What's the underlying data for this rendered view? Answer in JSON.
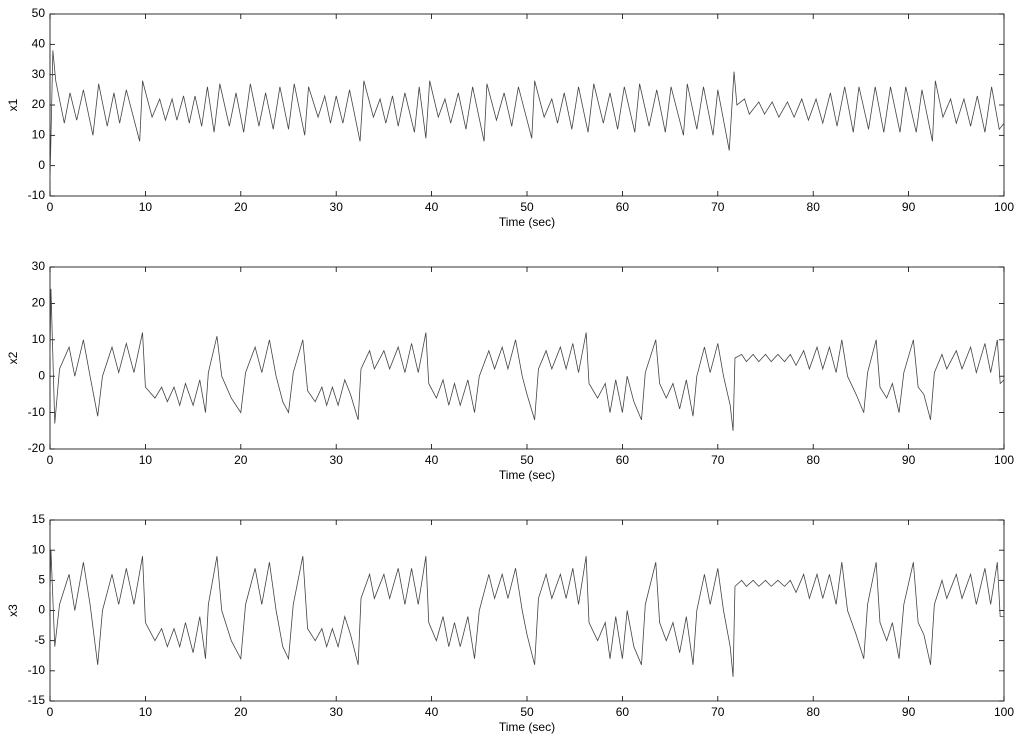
{
  "chart_data": [
    {
      "type": "line",
      "xlabel": "Time (sec)",
      "ylabel": "x1",
      "color": "#444444",
      "xlim": [
        0,
        100
      ],
      "ylim": [
        -10,
        50
      ],
      "xticks": [
        0,
        10,
        20,
        30,
        40,
        50,
        60,
        70,
        80,
        90,
        100
      ],
      "yticks": [
        -10,
        0,
        10,
        20,
        30,
        40,
        50
      ],
      "x": [
        0,
        0.3,
        0.6,
        1.5,
        2.1,
        2.8,
        3.5,
        4.5,
        5.1,
        6,
        6.7,
        7.3,
        8,
        9.4,
        9.7,
        10.7,
        11.5,
        12.1,
        12.8,
        13.3,
        14,
        14.6,
        15.2,
        15.9,
        16.5,
        17.2,
        17.8,
        18.8,
        19.5,
        20.3,
        21,
        21.9,
        22.6,
        23.4,
        24.1,
        25,
        25.6,
        26.7,
        27.1,
        28.1,
        28.8,
        29.4,
        30,
        30.7,
        31.4,
        32.5,
        32.9,
        33.9,
        34.6,
        35.2,
        35.9,
        36.5,
        37.2,
        38.2,
        38.7,
        39.4,
        39.8,
        40.7,
        41.4,
        42,
        42.8,
        43.6,
        44.3,
        45.5,
        45.8,
        46.8,
        47.6,
        48.4,
        49.1,
        50.5,
        50.8,
        51.8,
        52.6,
        53.2,
        53.9,
        54.7,
        55.4,
        56.4,
        57,
        58,
        58.7,
        59.5,
        60.2,
        61.3,
        61.8,
        62.8,
        63.6,
        64.5,
        65.1,
        66.4,
        66.8,
        67.8,
        68.5,
        69.5,
        70,
        71.2,
        71.7,
        72,
        72.8,
        73.3,
        74.3,
        74.9,
        75.7,
        76.4,
        77.3,
        78,
        78.8,
        79.5,
        80.3,
        81,
        81.8,
        82.5,
        83.3,
        84.2,
        84.8,
        85.8,
        86.5,
        87.4,
        88.1,
        89.1,
        89.7,
        90.8,
        91.4,
        92.5,
        92.8,
        93.6,
        94.4,
        95,
        95.8,
        96.5,
        97.2,
        98,
        98.7,
        99.5,
        100
      ],
      "values": [
        -5,
        38,
        28,
        14,
        24,
        15,
        25,
        10,
        27,
        13,
        24,
        14,
        25,
        8,
        28,
        16,
        22,
        15,
        22,
        15,
        23,
        14,
        23,
        13,
        26,
        11,
        27,
        13,
        24,
        11,
        27,
        13,
        24,
        12,
        26,
        12,
        27,
        10,
        26,
        16,
        23,
        14,
        23,
        14,
        25,
        8,
        28,
        16,
        22,
        14,
        23,
        13,
        24,
        11,
        26,
        9,
        28,
        16,
        22,
        14,
        24,
        12,
        26,
        8,
        27,
        15,
        24,
        13,
        26,
        9,
        28,
        16,
        22,
        14,
        24,
        12,
        26,
        11,
        27,
        14,
        24,
        12,
        26,
        11,
        27,
        13,
        25,
        11,
        26,
        10,
        27,
        12,
        26,
        10,
        25,
        5,
        31,
        20,
        22,
        17,
        21,
        17,
        21,
        16,
        21,
        16,
        22,
        15,
        22,
        14,
        24,
        13,
        26,
        11,
        26,
        12,
        26,
        11,
        26,
        11,
        26,
        11,
        25,
        8,
        28,
        16,
        22,
        14,
        22,
        13,
        23,
        11,
        26,
        12,
        14
      ]
    },
    {
      "type": "line",
      "xlabel": "Time (sec)",
      "ylabel": "x2",
      "color": "#444444",
      "xlim": [
        0,
        100
      ],
      "ylim": [
        -20,
        30
      ],
      "xticks": [
        0,
        10,
        20,
        30,
        40,
        50,
        60,
        70,
        80,
        90,
        100
      ],
      "yticks": [
        -20,
        -10,
        0,
        10,
        20,
        30
      ],
      "x": [
        0,
        0.1,
        0.5,
        1,
        2,
        2.6,
        3.5,
        4.2,
        5,
        5.5,
        6.5,
        7.2,
        8,
        8.8,
        9.7,
        10,
        11,
        11.7,
        12.3,
        13,
        13.6,
        14.2,
        15,
        15.7,
        16.3,
        16.6,
        17.5,
        18,
        19,
        20,
        20.5,
        21.5,
        22.2,
        23,
        23.7,
        24.4,
        25,
        25.5,
        26.5,
        27,
        27.8,
        28.5,
        29,
        29.6,
        30.2,
        30.9,
        31.5,
        32.3,
        32.6,
        33.5,
        34,
        35,
        35.6,
        36.5,
        37.2,
        37.9,
        38.6,
        39.4,
        39.7,
        40.5,
        41.2,
        41.8,
        42.4,
        43,
        43.8,
        44.5,
        45,
        46,
        46.6,
        47.4,
        48,
        48.8,
        49.5,
        50,
        50.8,
        51.2,
        52,
        52.6,
        53.5,
        54.1,
        54.8,
        55.4,
        56.2,
        56.5,
        57.4,
        58.2,
        58.7,
        59.3,
        60,
        60.5,
        61.2,
        62,
        62.4,
        63.5,
        63.9,
        64.6,
        65.3,
        66,
        66.7,
        67.4,
        67.8,
        68.6,
        69.2,
        70,
        70.6,
        71.3,
        71.6,
        71.8,
        72.5,
        73,
        73.7,
        74.3,
        75,
        75.6,
        76.3,
        77,
        77.6,
        78.2,
        79,
        79.6,
        80.4,
        81,
        81.7,
        82.4,
        83,
        83.6,
        84.5,
        85.3,
        85.7,
        86.6,
        87,
        87.7,
        88.3,
        89,
        89.5,
        90.5,
        91,
        91.6,
        92.3,
        92.7,
        93.5,
        94,
        95,
        95.6,
        96.5,
        97.1,
        98,
        98.6,
        99.3,
        99.6,
        100
      ],
      "values": [
        5,
        24,
        -13,
        2,
        8,
        0,
        10,
        0,
        -11,
        0,
        8,
        1,
        9,
        1,
        12,
        -3,
        -6,
        -3,
        -7,
        -3,
        -8,
        -2,
        -8,
        -1,
        -10,
        1,
        11,
        0,
        -6,
        -10,
        1,
        8,
        1,
        10,
        0,
        -7,
        -10,
        1,
        10,
        -4,
        -7,
        -3,
        -8,
        -3,
        -8,
        -1,
        -5,
        -12,
        2,
        7,
        2,
        7,
        2,
        8,
        1,
        9,
        1,
        12,
        -2,
        -6,
        -1,
        -8,
        -2,
        -8,
        -1,
        -10,
        0,
        7,
        2,
        8,
        2,
        10,
        0,
        -5,
        -12,
        2,
        7,
        2,
        8,
        2,
        9,
        1,
        12,
        -2,
        -6,
        -2,
        -10,
        -1,
        -10,
        0,
        -7,
        -12,
        1,
        10,
        -2,
        -6,
        -2,
        -9,
        -1,
        -11,
        0,
        8,
        1,
        9,
        0,
        -8,
        -15,
        5,
        6,
        4,
        6,
        4,
        6,
        4,
        6,
        4,
        6,
        3,
        7,
        2,
        8,
        2,
        8,
        1,
        10,
        0,
        -5,
        -10,
        1,
        10,
        -3,
        -6,
        -2,
        -10,
        1,
        10,
        -3,
        -5,
        -12,
        1,
        6,
        2,
        7,
        2,
        8,
        1,
        9,
        1,
        10,
        -2,
        -1
      ]
    },
    {
      "type": "line",
      "xlabel": "Time (sec)",
      "ylabel": "x3",
      "color": "#444444",
      "xlim": [
        0,
        100
      ],
      "ylim": [
        -15,
        15
      ],
      "xticks": [
        0,
        10,
        20,
        30,
        40,
        50,
        60,
        70,
        80,
        90,
        100
      ],
      "yticks": [
        -15,
        -10,
        -5,
        0,
        5,
        10,
        15
      ],
      "x": [
        0,
        0.1,
        0.5,
        1,
        2,
        2.6,
        3.5,
        4.2,
        5,
        5.5,
        6.5,
        7.2,
        8,
        8.8,
        9.7,
        10,
        11,
        11.7,
        12.3,
        13,
        13.6,
        14.2,
        15,
        15.7,
        16.3,
        16.6,
        17.5,
        18,
        19,
        20,
        20.5,
        21.5,
        22.2,
        23,
        23.7,
        24.4,
        25,
        25.5,
        26.5,
        27,
        27.8,
        28.5,
        29,
        29.6,
        30.2,
        30.9,
        31.5,
        32.3,
        32.6,
        33.5,
        34,
        35,
        35.6,
        36.5,
        37.2,
        37.9,
        38.6,
        39.4,
        39.7,
        40.5,
        41.2,
        41.8,
        42.4,
        43,
        43.8,
        44.5,
        45,
        46,
        46.6,
        47.4,
        48,
        48.8,
        49.5,
        50,
        50.8,
        51.2,
        52,
        52.6,
        53.5,
        54.1,
        54.8,
        55.4,
        56.2,
        56.5,
        57.4,
        58.2,
        58.7,
        59.3,
        60,
        60.5,
        61.2,
        62,
        62.4,
        63.5,
        63.9,
        64.6,
        65.3,
        66,
        66.7,
        67.4,
        67.8,
        68.6,
        69.2,
        70,
        70.6,
        71.3,
        71.6,
        71.8,
        72.5,
        73,
        73.7,
        74.3,
        75,
        75.6,
        76.3,
        77,
        77.6,
        78.2,
        79,
        79.6,
        80.4,
        81,
        81.7,
        82.4,
        83,
        83.6,
        84.5,
        85.3,
        85.7,
        86.6,
        87,
        87.7,
        88.3,
        89,
        89.5,
        90.5,
        91,
        91.6,
        92.3,
        92.7,
        93.5,
        94,
        95,
        95.6,
        96.5,
        97.1,
        98,
        98.6,
        99.3,
        99.6,
        100
      ],
      "values": [
        3,
        10,
        -6,
        1,
        6,
        0,
        8,
        1,
        -9,
        0,
        6,
        1,
        7,
        1,
        9,
        -2,
        -5,
        -3,
        -6,
        -3,
        -6,
        -2,
        -7,
        -1,
        -8,
        1,
        9,
        0,
        -5,
        -8,
        1,
        7,
        1,
        8,
        0,
        -6,
        -8,
        1,
        9,
        -3,
        -5,
        -3,
        -6,
        -3,
        -6,
        -1,
        -4,
        -9,
        2,
        6,
        2,
        6,
        2,
        7,
        1,
        7,
        1,
        9,
        -2,
        -5,
        -1,
        -6,
        -2,
        -6,
        -1,
        -8,
        0,
        6,
        2,
        6,
        2,
        7,
        0,
        -4,
        -9,
        2,
        6,
        2,
        6,
        2,
        7,
        1,
        9,
        -2,
        -5,
        -2,
        -8,
        -1,
        -8,
        0,
        -6,
        -9,
        1,
        8,
        -2,
        -5,
        -2,
        -7,
        -1,
        -9,
        0,
        6,
        1,
        7,
        0,
        -6,
        -11,
        4,
        5,
        4,
        5,
        4,
        5,
        4,
        5,
        4,
        5,
        3,
        6,
        2,
        6,
        2,
        6,
        1,
        8,
        0,
        -4,
        -8,
        1,
        8,
        -2,
        -5,
        -2,
        -8,
        1,
        8,
        -2,
        -4,
        -9,
        1,
        5,
        2,
        6,
        2,
        6,
        1,
        7,
        1,
        8,
        -1,
        -1
      ]
    }
  ]
}
